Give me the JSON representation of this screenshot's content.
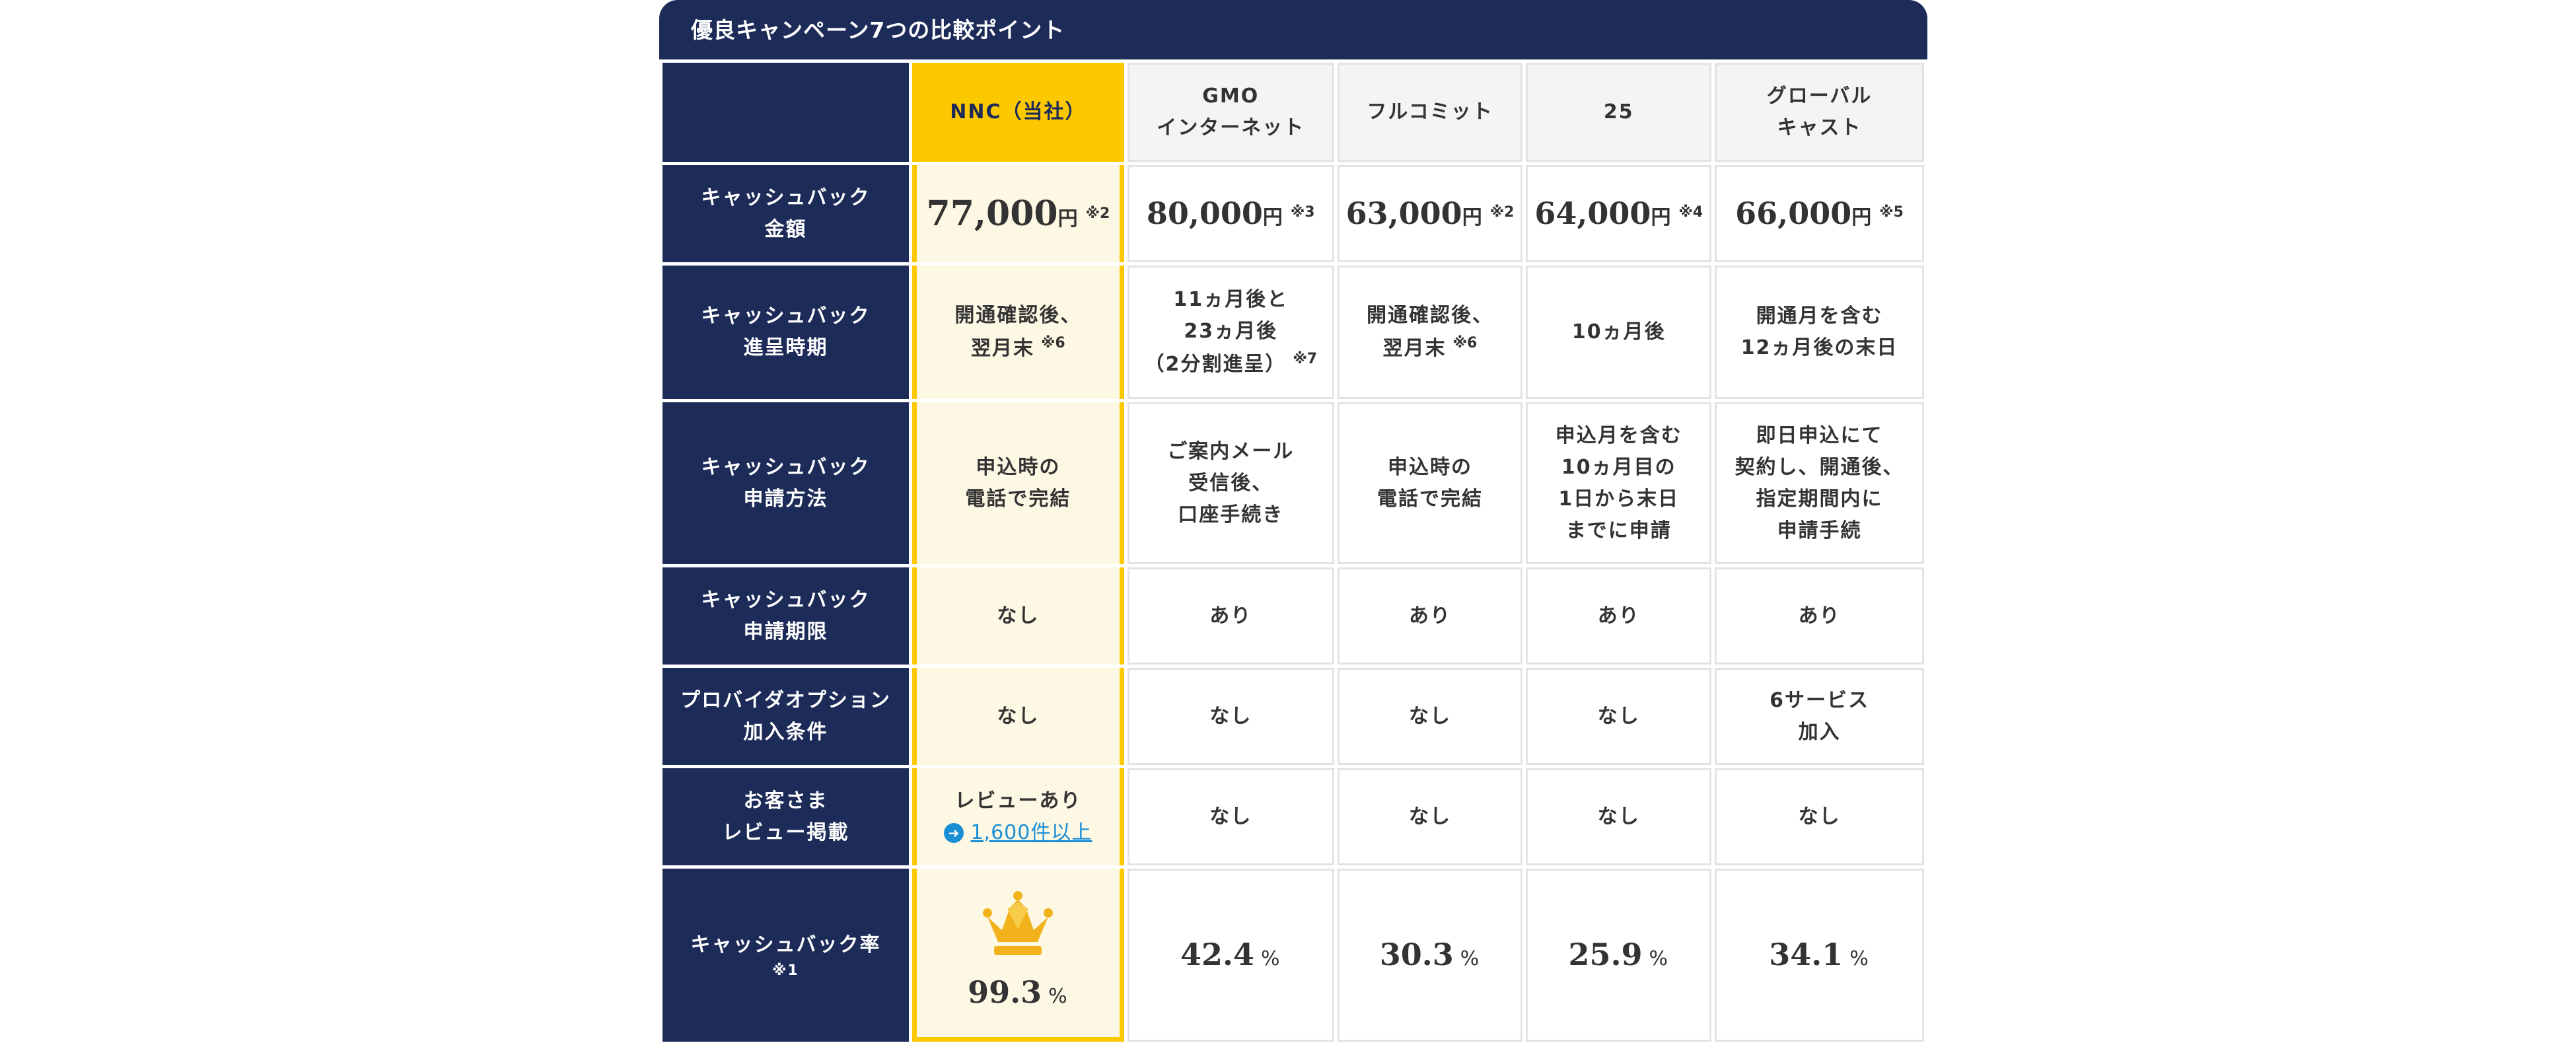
{
  "header": {
    "title": "優良キャンペーン7つの比較ポイント"
  },
  "columns": [
    {
      "name": "NNC（当社）"
    },
    {
      "name_line1": "GMO",
      "name_line2": "インターネット"
    },
    {
      "name": "フルコミット"
    },
    {
      "name": "25"
    },
    {
      "name_line1": "グローバル",
      "name_line2": "キャスト"
    }
  ],
  "rows": {
    "cashback_amount": {
      "label_line1": "キャッシュバック",
      "label_line2": "金額",
      "values": [
        {
          "amount": "77,000",
          "unit": "円",
          "note": "※2"
        },
        {
          "amount": "80,000",
          "unit": "円",
          "note": "※3"
        },
        {
          "amount": "63,000",
          "unit": "円",
          "note": "※2"
        },
        {
          "amount": "64,000",
          "unit": "円",
          "note": "※4"
        },
        {
          "amount": "66,000",
          "unit": "円",
          "note": "※5"
        }
      ]
    },
    "cashback_timing": {
      "label_line1": "キャッシュバック",
      "label_line2": "進呈時期",
      "values": [
        {
          "line1": "開通確認後、",
          "line2": "翌月末",
          "note": "※6"
        },
        {
          "line1": "11ヵ月後と",
          "line2": "23ヵ月後",
          "line3": "（2分割進呈）",
          "note": "※7"
        },
        {
          "line1": "開通確認後、",
          "line2": "翌月末",
          "note": "※6"
        },
        {
          "line1": "10ヵ月後"
        },
        {
          "line1": "開通月を含む",
          "line2": "12ヵ月後の末日"
        }
      ]
    },
    "application_method": {
      "label_line1": "キャッシュバック",
      "label_line2": "申請方法",
      "values": [
        {
          "line1": "申込時の",
          "line2": "電話で完結"
        },
        {
          "line1": "ご案内メール",
          "line2": "受信後、",
          "line3": "口座手続き"
        },
        {
          "line1": "申込時の",
          "line2": "電話で完結"
        },
        {
          "line1": "申込月を含む",
          "line2": "10ヵ月目の",
          "line3": "1日から末日",
          "line4": "までに申請"
        },
        {
          "line1": "即日申込にて",
          "line2": "契約し、開通後、",
          "line3": "指定期間内に",
          "line4": "申請手続"
        }
      ]
    },
    "application_deadline": {
      "label_line1": "キャッシュバック",
      "label_line2": "申請期限",
      "values": [
        "なし",
        "あり",
        "あり",
        "あり",
        "あり"
      ]
    },
    "provider_option": {
      "label_line1": "プロバイダオプション",
      "label_line2": "加入条件",
      "values": [
        {
          "line1": "なし"
        },
        {
          "line1": "なし"
        },
        {
          "line1": "なし"
        },
        {
          "line1": "なし"
        },
        {
          "line1": "6サービス",
          "line2": "加入"
        }
      ]
    },
    "customer_review": {
      "label_line1": "お客さま",
      "label_line2": "レビュー掲載",
      "own_text": "レビューあり",
      "own_link": "1,600件以上",
      "values": [
        "なし",
        "なし",
        "なし",
        "なし"
      ]
    },
    "cashback_rate": {
      "label_line1": "キャッシュバック率",
      "label_note": "※1",
      "values": [
        {
          "value": "99.3",
          "unit": "%"
        },
        {
          "value": "42.4",
          "unit": "%"
        },
        {
          "value": "30.3",
          "unit": "%"
        },
        {
          "value": "25.9",
          "unit": "%"
        },
        {
          "value": "34.1",
          "unit": "%"
        }
      ]
    }
  },
  "icons": {
    "crown": "crown-icon",
    "link_arrow": "arrow-right-circle-icon"
  },
  "colors": {
    "navy": "#1d2b58",
    "gold": "#fcc800",
    "highlight_bg": "#fdf8e4",
    "link": "#1a8fd6"
  }
}
